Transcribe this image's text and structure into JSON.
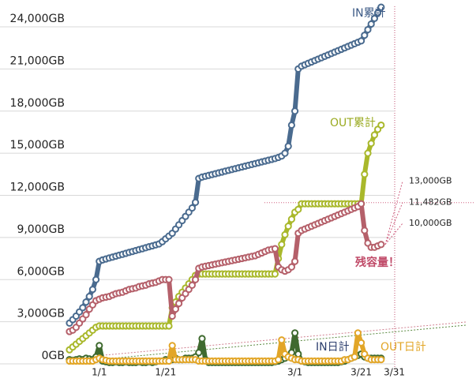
{
  "chart_data": {
    "type": "line",
    "categories": [
      null,
      null,
      null,
      null,
      null,
      null,
      null,
      null,
      null,
      "1/1",
      null,
      null,
      null,
      null,
      null,
      null,
      null,
      null,
      null,
      null,
      null,
      null,
      null,
      null,
      null,
      null,
      null,
      null,
      null,
      "1/21",
      null,
      null,
      null,
      null,
      null,
      null,
      null,
      null,
      null,
      null,
      null,
      null,
      null,
      null,
      null,
      null,
      null,
      null,
      null,
      null,
      null,
      null,
      null,
      null,
      null,
      null,
      null,
      null,
      null,
      null,
      null,
      null,
      null,
      null,
      null,
      null,
      null,
      null,
      "3/1",
      null,
      null,
      null,
      null,
      null,
      null,
      null,
      null,
      null,
      null,
      null,
      null,
      null,
      null,
      null,
      null,
      null,
      null,
      null,
      "3/21",
      null,
      null,
      null,
      null,
      null,
      null,
      null,
      null,
      null,
      "3/31"
    ],
    "series": [
      {
        "name": "IN累計",
        "color": "#4a6b8f",
        "values": [
          2900,
          3150,
          3400,
          3700,
          4000,
          4400,
          4800,
          5300,
          6000,
          7300,
          7400,
          7470,
          7540,
          7600,
          7670,
          7740,
          7800,
          7870,
          7940,
          8000,
          8070,
          8140,
          8200,
          8270,
          8340,
          8400,
          8470,
          8540,
          8700,
          8900,
          9100,
          9300,
          9600,
          9900,
          10200,
          10500,
          10800,
          11100,
          11500,
          13200,
          13300,
          13360,
          13420,
          13480,
          13540,
          13600,
          13660,
          13720,
          13780,
          13840,
          13900,
          13960,
          14020,
          14080,
          14140,
          14200,
          14260,
          14320,
          14380,
          14440,
          14500,
          14560,
          14620,
          14700,
          14800,
          15000,
          15500,
          17000,
          18000,
          21000,
          21200,
          21300,
          21400,
          21500,
          21600,
          21700,
          21800,
          21900,
          22000,
          22100,
          22200,
          22300,
          22400,
          22500,
          22600,
          22700,
          22800,
          22900,
          23000,
          23400,
          23800,
          24200,
          24600,
          25000,
          25400,
          null,
          null,
          null,
          null
        ]
      },
      {
        "name": "OUT累計",
        "color": "#a9b82b",
        "values": [
          1000,
          1200,
          1400,
          1600,
          1800,
          2000,
          2200,
          2400,
          2600,
          2700,
          2700,
          2700,
          2700,
          2700,
          2700,
          2700,
          2700,
          2700,
          2700,
          2700,
          2700,
          2700,
          2700,
          2700,
          2700,
          2700,
          2700,
          2700,
          2700,
          2700,
          2700,
          4000,
          4400,
          4800,
          5100,
          5400,
          5700,
          6000,
          6300,
          6400,
          6400,
          6400,
          6400,
          6400,
          6400,
          6400,
          6400,
          6400,
          6400,
          6400,
          6400,
          6400,
          6400,
          6400,
          6400,
          6400,
          6400,
          6400,
          6400,
          6400,
          6400,
          6400,
          6400,
          7500,
          8500,
          9200,
          9800,
          10300,
          10800,
          11000,
          11400,
          11400,
          11400,
          11400,
          11400,
          11400,
          11400,
          11400,
          11400,
          11400,
          11400,
          11400,
          11400,
          11400,
          11400,
          11400,
          11400,
          11400,
          11400,
          13500,
          15000,
          15700,
          16300,
          16700,
          17000,
          null,
          null,
          null,
          null
        ]
      },
      {
        "name": "残容量！",
        "color": "#b5606a",
        "values": [
          2300,
          2400,
          2600,
          2900,
          3200,
          3500,
          3900,
          4200,
          4500,
          4600,
          4700,
          4750,
          4800,
          4900,
          5000,
          5050,
          5100,
          5200,
          5300,
          5350,
          5400,
          5500,
          5550,
          5600,
          5700,
          5750,
          5800,
          5900,
          6000,
          6000,
          6000,
          3400,
          3900,
          4300,
          4700,
          5000,
          5300,
          5600,
          6000,
          6800,
          6900,
          6950,
          7000,
          7050,
          7100,
          7150,
          7200,
          7250,
          7300,
          7350,
          7400,
          7450,
          7500,
          7550,
          7600,
          7650,
          7700,
          7800,
          7900,
          8000,
          8100,
          8150,
          8200,
          6900,
          6700,
          6600,
          6700,
          6900,
          7300,
          9300,
          9500,
          9600,
          9700,
          9800,
          9900,
          10000,
          10100,
          10200,
          10300,
          10400,
          10500,
          10600,
          10700,
          10800,
          10900,
          11000,
          11100,
          11200,
          11400,
          9500,
          8600,
          8300,
          8300,
          8400,
          8500,
          null,
          null,
          null,
          null
        ]
      },
      {
        "name": "IN日計",
        "color": "#3f6a2f",
        "values": [
          300,
          250,
          300,
          350,
          300,
          400,
          350,
          300,
          500,
          1300,
          200,
          150,
          100,
          100,
          150,
          100,
          100,
          150,
          100,
          100,
          100,
          150,
          100,
          100,
          150,
          100,
          150,
          200,
          200,
          300,
          300,
          300,
          400,
          300,
          300,
          400,
          400,
          400,
          500,
          800,
          1800,
          300,
          100,
          100,
          100,
          100,
          100,
          100,
          100,
          100,
          100,
          100,
          100,
          100,
          100,
          100,
          100,
          100,
          100,
          100,
          100,
          100,
          150,
          200,
          300,
          400,
          500,
          800,
          2200,
          700,
          200,
          150,
          100,
          100,
          100,
          100,
          100,
          100,
          100,
          100,
          100,
          100,
          150,
          200,
          300,
          400,
          500,
          600,
          700,
          500,
          400,
          400,
          400,
          400,
          400,
          null,
          null,
          null,
          null
        ]
      },
      {
        "name": "OUT日計",
        "color": "#e2a628",
        "values": [
          200,
          200,
          200,
          200,
          200,
          200,
          200,
          200,
          300,
          400,
          300,
          250,
          200,
          200,
          200,
          200,
          200,
          200,
          200,
          200,
          200,
          200,
          200,
          200,
          200,
          200,
          200,
          200,
          200,
          200,
          200,
          1300,
          300,
          300,
          300,
          300,
          300,
          300,
          300,
          200,
          200,
          200,
          200,
          200,
          200,
          200,
          200,
          200,
          200,
          200,
          200,
          200,
          200,
          200,
          200,
          200,
          200,
          200,
          200,
          200,
          200,
          200,
          200,
          300,
          1700,
          700,
          500,
          400,
          300,
          300,
          200,
          200,
          200,
          200,
          200,
          200,
          200,
          200,
          200,
          200,
          200,
          200,
          200,
          300,
          300,
          400,
          500,
          2200,
          1500,
          700,
          400,
          300,
          300,
          300,
          300,
          null,
          null,
          null,
          null
        ]
      }
    ],
    "ylim": [
      0,
      26000
    ],
    "yticks": [
      {
        "value": 0,
        "label": "0GB"
      },
      {
        "value": 3000,
        "label": "3,000GB"
      },
      {
        "value": 6000,
        "label": "6,000GB"
      },
      {
        "value": 9000,
        "label": "9,000GB"
      },
      {
        "value": 12000,
        "label": "12,000GB"
      },
      {
        "value": 15000,
        "label": "15,000GB"
      },
      {
        "value": 18000,
        "label": "18,000GB"
      },
      {
        "value": 21000,
        "label": "21,000GB"
      },
      {
        "value": 24000,
        "label": "24,000GB"
      }
    ],
    "grid": true,
    "annotations": [
      {
        "value": 13000,
        "label": "13,000GB"
      },
      {
        "value": 11482,
        "label": "11,482GB"
      },
      {
        "value": 10000,
        "label": "10,000GB"
      }
    ]
  }
}
